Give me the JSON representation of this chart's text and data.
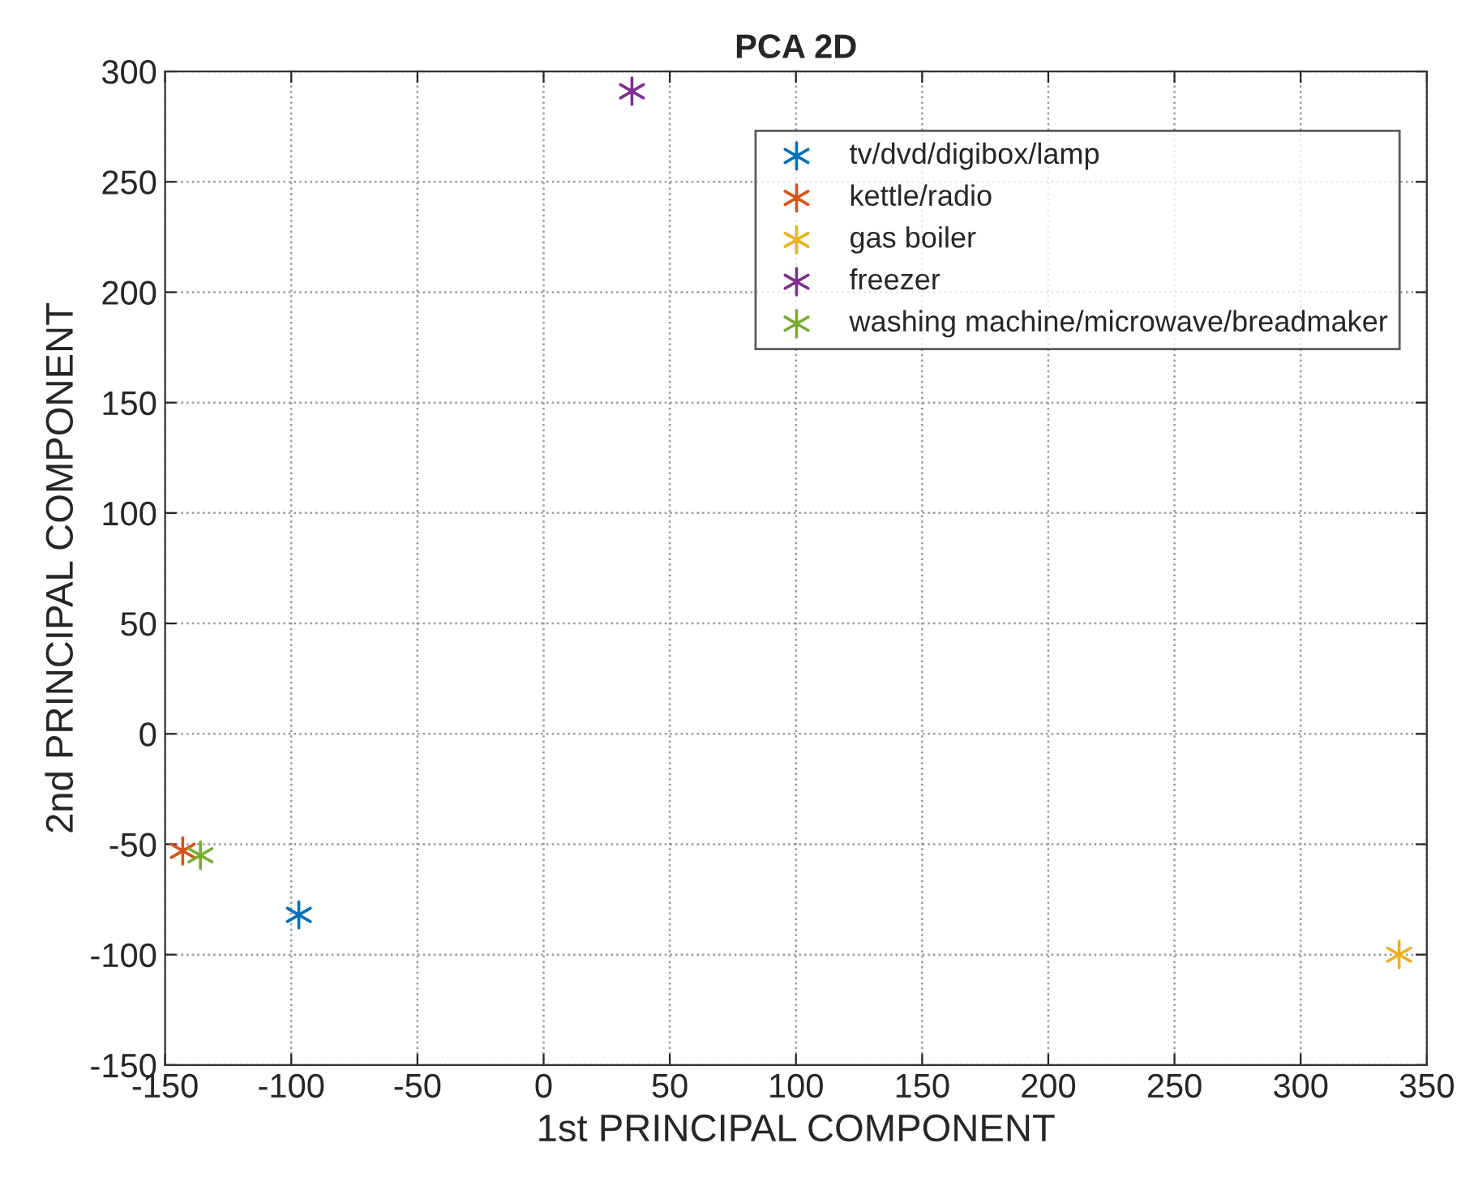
{
  "chart_data": {
    "type": "scatter",
    "title": "PCA 2D",
    "xlabel": "1st PRINCIPAL COMPONENT",
    "ylabel": "2nd PRINCIPAL COMPONENT",
    "series": [
      {
        "name": "tv/dvd/digibox/lamp",
        "color": "#0072bd",
        "x": [
          -97
        ],
        "values": [
          -82
        ]
      },
      {
        "name": "kettle/radio",
        "color": "#d95319",
        "x": [
          -143
        ],
        "values": [
          -53
        ]
      },
      {
        "name": "gas boiler",
        "color": "#edb120",
        "x": [
          339
        ],
        "values": [
          -100
        ]
      },
      {
        "name": "freezer",
        "color": "#7e2f8e",
        "x": [
          35
        ],
        "values": [
          291
        ]
      },
      {
        "name": "washing machine/microwave/breadmaker",
        "color": "#77ac30",
        "x": [
          -136
        ],
        "values": [
          -55
        ]
      }
    ],
    "xlim": [
      -150,
      350
    ],
    "xticks": [
      -150,
      -100,
      -50,
      0,
      50,
      100,
      150,
      200,
      250,
      300,
      350
    ],
    "ylim": [
      -150,
      300
    ],
    "yticks": [
      -150,
      -100,
      -50,
      0,
      50,
      100,
      150,
      200,
      250,
      300
    ],
    "grid": true,
    "legend": "top right",
    "marker": "cross"
  }
}
